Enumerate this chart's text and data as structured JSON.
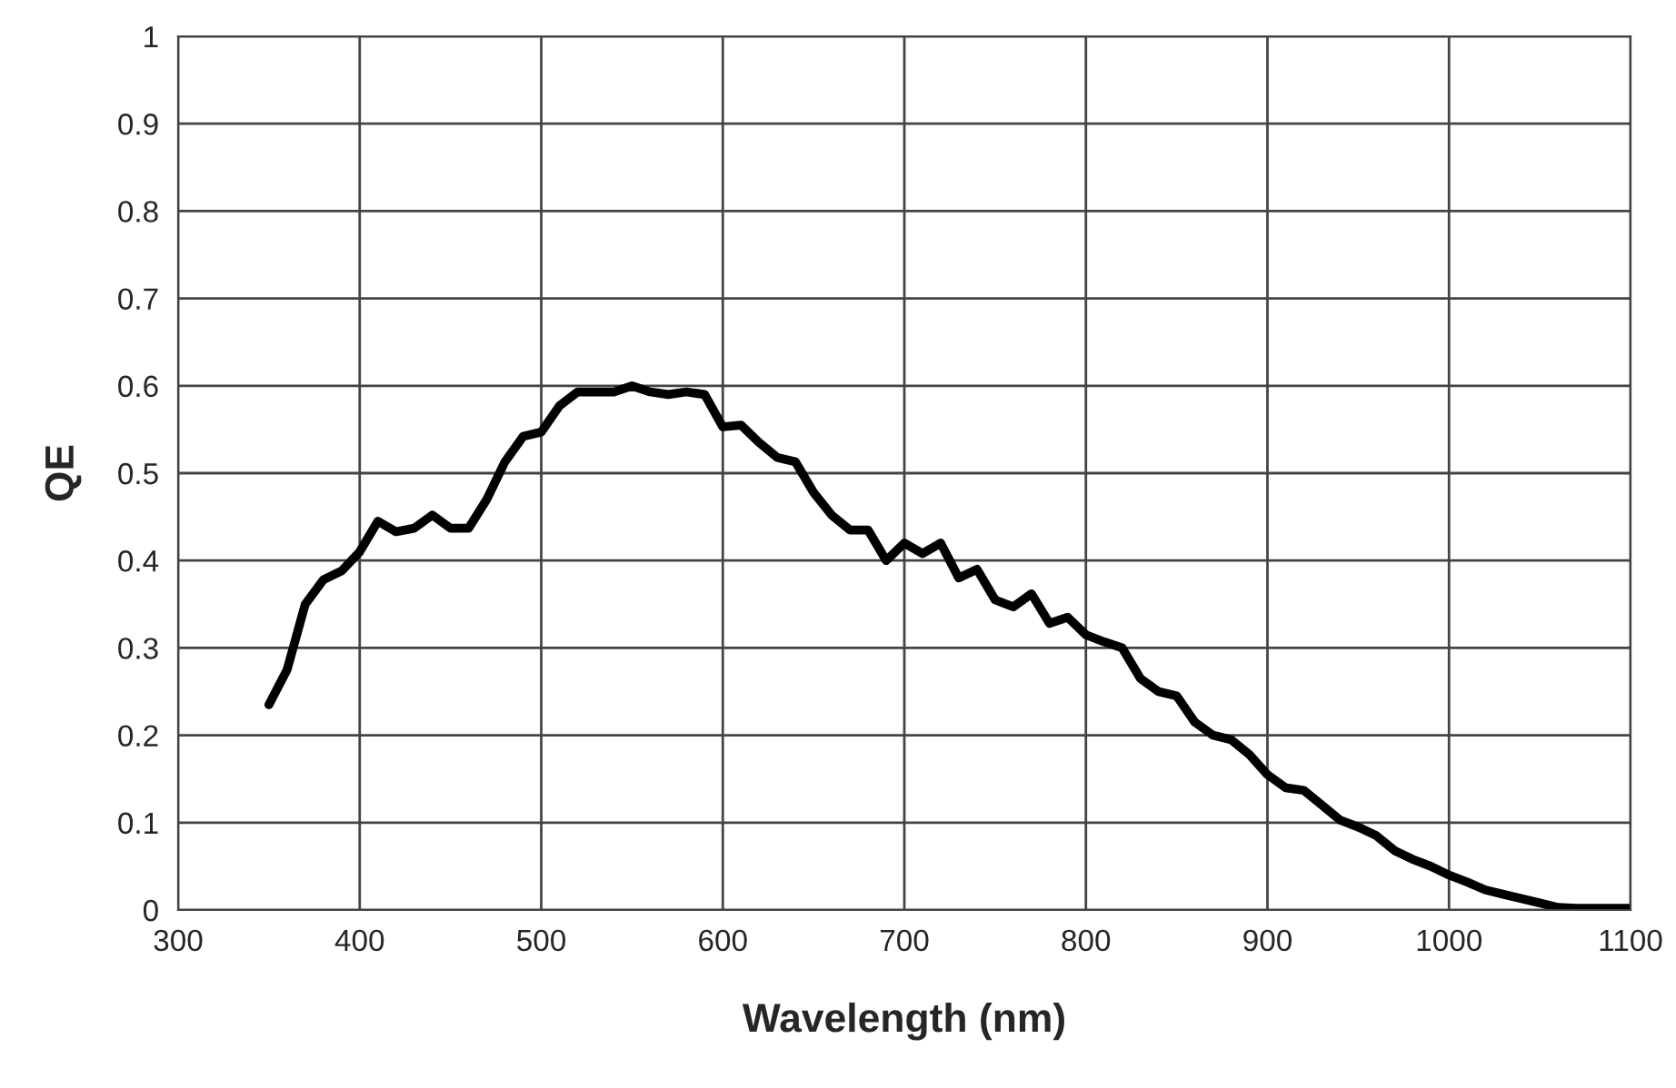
{
  "chart_data": {
    "type": "line",
    "xlabel": "Wavelength (nm)",
    "ylabel": "QE",
    "x": [
      350,
      360,
      370,
      380,
      390,
      400,
      410,
      420,
      430,
      440,
      450,
      460,
      470,
      480,
      490,
      500,
      510,
      520,
      530,
      540,
      550,
      560,
      570,
      580,
      590,
      600,
      610,
      620,
      630,
      640,
      650,
      660,
      670,
      680,
      690,
      700,
      710,
      720,
      730,
      740,
      750,
      760,
      770,
      780,
      790,
      800,
      810,
      820,
      830,
      840,
      850,
      860,
      870,
      880,
      890,
      900,
      910,
      920,
      930,
      940,
      950,
      960,
      970,
      980,
      990,
      1000,
      1010,
      1020,
      1030,
      1040,
      1050,
      1060,
      1070,
      1080,
      1090,
      1100
    ],
    "series": [
      {
        "color": "#000000",
        "values": [
          0.235,
          0.275,
          0.35,
          0.378,
          0.388,
          0.41,
          0.445,
          0.433,
          0.437,
          0.452,
          0.437,
          0.437,
          0.47,
          0.513,
          0.542,
          0.547,
          0.577,
          0.593,
          0.593,
          0.593,
          0.6,
          0.593,
          0.59,
          0.593,
          0.59,
          0.553,
          0.555,
          0.535,
          0.518,
          0.513,
          0.478,
          0.452,
          0.435,
          0.435,
          0.4,
          0.42,
          0.408,
          0.42,
          0.38,
          0.39,
          0.355,
          0.347,
          0.362,
          0.328,
          0.335,
          0.315,
          0.307,
          0.3,
          0.265,
          0.25,
          0.245,
          0.215,
          0.2,
          0.195,
          0.178,
          0.155,
          0.14,
          0.137,
          0.12,
          0.103,
          0.095,
          0.085,
          0.068,
          0.058,
          0.05,
          0.04,
          0.032,
          0.023,
          0.018,
          0.013,
          0.008,
          0.003,
          0.002,
          0.002,
          0.002,
          0.002
        ]
      }
    ],
    "xlim": [
      300,
      1100
    ],
    "xticks": [
      300,
      400,
      500,
      600,
      700,
      800,
      900,
      1000,
      1100
    ],
    "ylim": [
      0,
      1
    ],
    "yticks": [
      0,
      0.1,
      0.2,
      0.3,
      0.4,
      0.5,
      0.6,
      0.7,
      0.8,
      0.9,
      1
    ],
    "grid": true,
    "marker": "none",
    "line_style": "solid"
  }
}
